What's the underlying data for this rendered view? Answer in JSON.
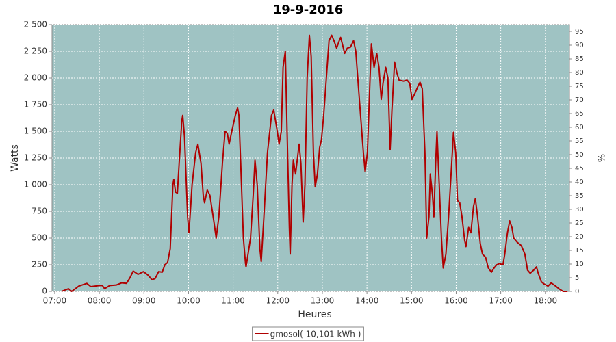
{
  "chart_data": {
    "type": "line",
    "title": "19-9-2016",
    "y_label": "Watts",
    "x_label": "Heures",
    "y2_label": "%",
    "xlim": [
      6.94,
      18.54
    ],
    "xticks": [
      {
        "value": 7,
        "label": "07:00"
      },
      {
        "value": 8,
        "label": "08:00"
      },
      {
        "value": 9,
        "label": "09:00"
      },
      {
        "value": 10,
        "label": "10:00"
      },
      {
        "value": 11,
        "label": "11:00"
      },
      {
        "value": 12,
        "label": "12:00"
      },
      {
        "value": 13,
        "label": "13:00"
      },
      {
        "value": 14,
        "label": "14:00"
      },
      {
        "value": 15,
        "label": "15:00"
      },
      {
        "value": 16,
        "label": "16:00"
      },
      {
        "value": 17,
        "label": "17:00"
      },
      {
        "value": 18,
        "label": "18:00"
      }
    ],
    "ylim": [
      0,
      2500
    ],
    "yticks": [
      0,
      250,
      500,
      750,
      {
        "value": 1000,
        "label": "1 000"
      },
      {
        "value": 1250,
        "label": "1 250"
      },
      {
        "value": 1500,
        "label": "1 500"
      },
      {
        "value": 1750,
        "label": "1 750"
      },
      {
        "value": 2000,
        "label": "2 000"
      },
      {
        "value": 2250,
        "label": "2 250"
      },
      {
        "value": 2500,
        "label": "2 500"
      }
    ],
    "y2lim": [
      0,
      97.5
    ],
    "y2ticks": [
      0,
      5,
      10,
      15,
      20,
      25,
      30,
      35,
      40,
      45,
      50,
      55,
      60,
      65,
      70,
      75,
      80,
      85,
      90,
      95
    ],
    "grid": true,
    "background": "#9fc3c3",
    "legend": "bottom",
    "x": [
      7.15,
      7.31,
      7.38,
      7.54,
      7.72,
      7.81,
      8.0,
      8.07,
      8.12,
      8.23,
      8.38,
      8.5,
      8.61,
      8.69,
      8.76,
      8.87,
      8.99,
      9.1,
      9.18,
      9.25,
      9.33,
      9.41,
      9.47,
      9.53,
      9.59,
      9.65,
      9.67,
      9.71,
      9.75,
      9.79,
      9.85,
      9.87,
      9.91,
      9.98,
      10.01,
      10.08,
      10.16,
      10.21,
      10.28,
      10.33,
      10.36,
      10.42,
      10.48,
      10.57,
      10.62,
      10.68,
      10.76,
      10.82,
      10.87,
      10.91,
      10.97,
      11.05,
      11.1,
      11.13,
      11.17,
      11.23,
      11.28,
      11.29,
      11.39,
      11.45,
      11.49,
      11.54,
      11.6,
      11.63,
      11.69,
      11.77,
      11.86,
      11.91,
      11.99,
      12.03,
      12.08,
      12.12,
      12.17,
      12.21,
      12.26,
      12.28,
      12.32,
      12.35,
      12.4,
      12.48,
      12.52,
      12.57,
      12.61,
      12.66,
      12.71,
      12.75,
      12.8,
      12.84,
      12.89,
      12.94,
      12.98,
      13.03,
      13.09,
      13.15,
      13.21,
      13.26,
      13.32,
      13.38,
      13.41,
      13.46,
      13.5,
      13.56,
      13.63,
      13.7,
      13.75,
      13.83,
      13.92,
      13.96,
      14.01,
      14.07,
      14.1,
      14.16,
      14.22,
      14.27,
      14.32,
      14.36,
      14.42,
      14.47,
      14.52,
      14.56,
      14.62,
      14.67,
      14.72,
      14.82,
      14.9,
      14.96,
      15.01,
      15.07,
      15.14,
      15.19,
      15.24,
      15.3,
      15.34,
      15.39,
      15.42,
      15.47,
      15.5,
      15.54,
      15.57,
      15.62,
      15.67,
      15.71,
      15.77,
      15.83,
      15.9,
      15.94,
      15.99,
      16.03,
      16.08,
      16.13,
      16.19,
      16.22,
      16.28,
      16.33,
      16.39,
      16.43,
      16.48,
      16.54,
      16.59,
      16.66,
      16.72,
      16.79,
      16.85,
      16.91,
      16.97,
      17.05,
      17.09,
      17.15,
      17.2,
      17.25,
      17.29,
      17.37,
      17.46,
      17.54,
      17.6,
      17.66,
      17.74,
      17.8,
      17.84,
      17.91,
      17.97,
      18.06,
      18.13,
      18.23,
      18.32,
      18.4,
      18.5
    ],
    "series": [
      {
        "name": "gmosol( 10,101 kWh )",
        "color": "#b00000",
        "values": [
          0,
          25,
          0,
          50,
          75,
          45,
          55,
          55,
          25,
          55,
          60,
          80,
          75,
          130,
          190,
          160,
          185,
          150,
          110,
          120,
          185,
          180,
          250,
          270,
          400,
          1000,
          1050,
          930,
          920,
          1200,
          1600,
          1650,
          1450,
          700,
          550,
          1000,
          1300,
          1380,
          1200,
          900,
          830,
          950,
          900,
          650,
          500,
          700,
          1200,
          1500,
          1480,
          1380,
          1500,
          1650,
          1720,
          1650,
          1200,
          500,
          250,
          230,
          500,
          900,
          1230,
          1000,
          400,
          280,
          700,
          1300,
          1650,
          1700,
          1500,
          1380,
          1500,
          2100,
          2250,
          1500,
          600,
          350,
          1000,
          1230,
          1100,
          1380,
          1200,
          650,
          1000,
          2000,
          2400,
          2200,
          1300,
          980,
          1100,
          1350,
          1420,
          1650,
          2000,
          2350,
          2400,
          2350,
          2280,
          2350,
          2380,
          2300,
          2230,
          2280,
          2290,
          2350,
          2250,
          1800,
          1300,
          1120,
          1300,
          2000,
          2320,
          2100,
          2230,
          2100,
          1800,
          1950,
          2100,
          2000,
          1330,
          1700,
          2150,
          2050,
          1980,
          1970,
          1980,
          1950,
          1800,
          1850,
          1920,
          1960,
          1900,
          1300,
          500,
          700,
          1100,
          900,
          700,
          1200,
          1500,
          1000,
          500,
          220,
          350,
          700,
          1200,
          1490,
          1300,
          850,
          830,
          700,
          480,
          420,
          600,
          550,
          800,
          870,
          700,
          450,
          350,
          320,
          220,
          180,
          220,
          250,
          260,
          250,
          350,
          550,
          660,
          600,
          500,
          460,
          430,
          350,
          200,
          170,
          200,
          230,
          170,
          90,
          70,
          50,
          80,
          50,
          20,
          0,
          0
        ]
      }
    ]
  }
}
